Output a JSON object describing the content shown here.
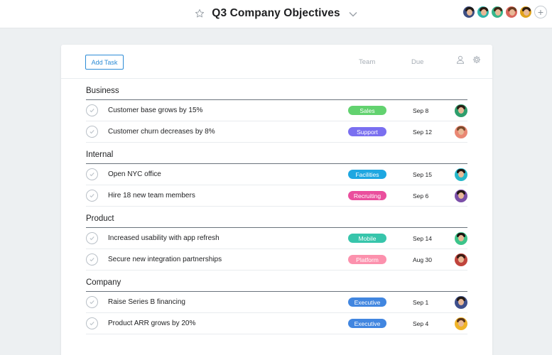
{
  "header": {
    "title": "Q3 Company Objectives",
    "star_icon": "star-outline-icon",
    "chevron_icon": "chevron-down-icon",
    "members": [
      {
        "bg": "#3d4e82",
        "hair": "#1f1a16"
      },
      {
        "bg": "#2fb3a8",
        "hair": "#2a1a12"
      },
      {
        "bg": "#37b58a",
        "hair": "#3b2616"
      },
      {
        "bg": "#d9665c",
        "hair": "#6b3a20"
      },
      {
        "bg": "#e0a21c",
        "hair": "#2e1d12"
      }
    ],
    "add_member_label": "+"
  },
  "toolbar": {
    "add_task_label": "Add Task",
    "team_col": "Team",
    "due_col": "Due",
    "person_icon": "person-icon",
    "settings_icon": "gear-icon"
  },
  "sections": [
    {
      "title": "Business",
      "tasks": [
        {
          "name": "Customer base grows by 15%",
          "tag": "Sales",
          "tag_color": "#62d26f",
          "due": "Sep 8",
          "avatar_bg": "#2e9e6d",
          "avatar_hair": "#2a1e16"
        },
        {
          "name": "Customer churn decreases by 8%",
          "tag": "Support",
          "tag_color": "#7a6ff0",
          "due": "Sep 12",
          "avatar_bg": "#e98773",
          "avatar_hair": "#7a4a2c"
        }
      ]
    },
    {
      "title": "Internal",
      "tasks": [
        {
          "name": "Open NYC office",
          "tag": "Facilities",
          "tag_color": "#1ea7e1",
          "due": "Sep 15",
          "avatar_bg": "#25b8c9",
          "avatar_hair": "#1d1512"
        },
        {
          "name": "Hire 18 new team members",
          "tag": "Recruiting",
          "tag_color": "#ea4e9d",
          "due": "Sep 6",
          "avatar_bg": "#7b4fa8",
          "avatar_hair": "#231713"
        }
      ]
    },
    {
      "title": "Product",
      "tasks": [
        {
          "name": "Increased usability with app refresh",
          "tag": "Mobile",
          "tag_color": "#37c5ab",
          "due": "Sep 14",
          "avatar_bg": "#3cc48a",
          "avatar_hair": "#1b1411"
        },
        {
          "name": "Secure new integration partnerships",
          "tag": "Platform",
          "tag_color": "#fc91ad",
          "due": "Aug 30",
          "avatar_bg": "#c0443c",
          "avatar_hair": "#3a1c14"
        }
      ]
    },
    {
      "title": "Company",
      "tasks": [
        {
          "name": "Raise Series B financing",
          "tag": "Executive",
          "tag_color": "#4186e0",
          "due": "Sep 1",
          "avatar_bg": "#3e4f8c",
          "avatar_hair": "#231a15"
        },
        {
          "name": "Product ARR grows by 20%",
          "tag": "Executive",
          "tag_color": "#4186e0",
          "due": "Sep 4",
          "avatar_bg": "#f0b429",
          "avatar_hair": "#5a3418"
        }
      ]
    }
  ]
}
